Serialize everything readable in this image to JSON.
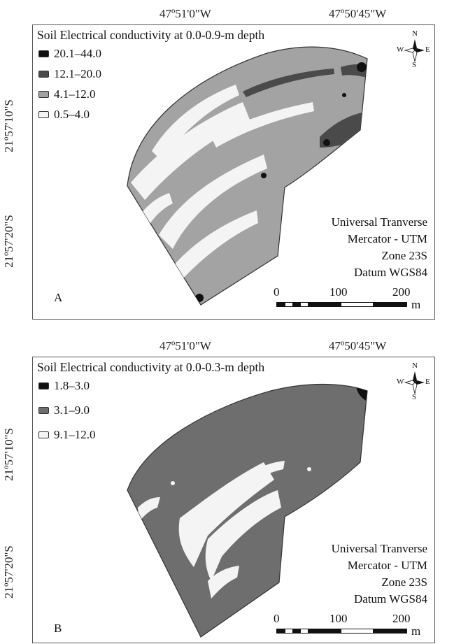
{
  "coordinates": {
    "lon_left": "47º51'0\"W",
    "lon_right": "47º50'45\"W",
    "lat_top": "21º57'10\"S",
    "lat_bottom": "21º57'20\"S"
  },
  "panels": [
    {
      "letter": "A",
      "legend_title": "Soil Electrical conductivity at 0.0-0.9-m depth",
      "legend": [
        {
          "label": "20.1–44.0",
          "color": "#111111"
        },
        {
          "label": "12.1–20.0",
          "color": "#4a4a4a"
        },
        {
          "label": "4.1–12.0",
          "color": "#a3a3a3"
        },
        {
          "label": "0.5–4.0",
          "color": "#f4f4f4"
        }
      ]
    },
    {
      "letter": "B",
      "legend_title": "Soil Electrical conductivity at 0.0-0.3-m depth",
      "legend": [
        {
          "label": "1.8–3.0",
          "color": "#111111"
        },
        {
          "label": "3.1–9.0",
          "color": "#6e6e6e"
        },
        {
          "label": "9.1–12.0",
          "color": "#f4f4f4"
        }
      ]
    }
  ],
  "projection": [
    "Universal Tranverse",
    "Mercator - UTM",
    "Zone 23S",
    "Datum WGS84"
  ],
  "compass": {
    "n": "N",
    "s": "S",
    "e": "E",
    "w": "W"
  },
  "scale": {
    "labels": [
      "0",
      "100",
      "200"
    ],
    "unit": "m"
  }
}
